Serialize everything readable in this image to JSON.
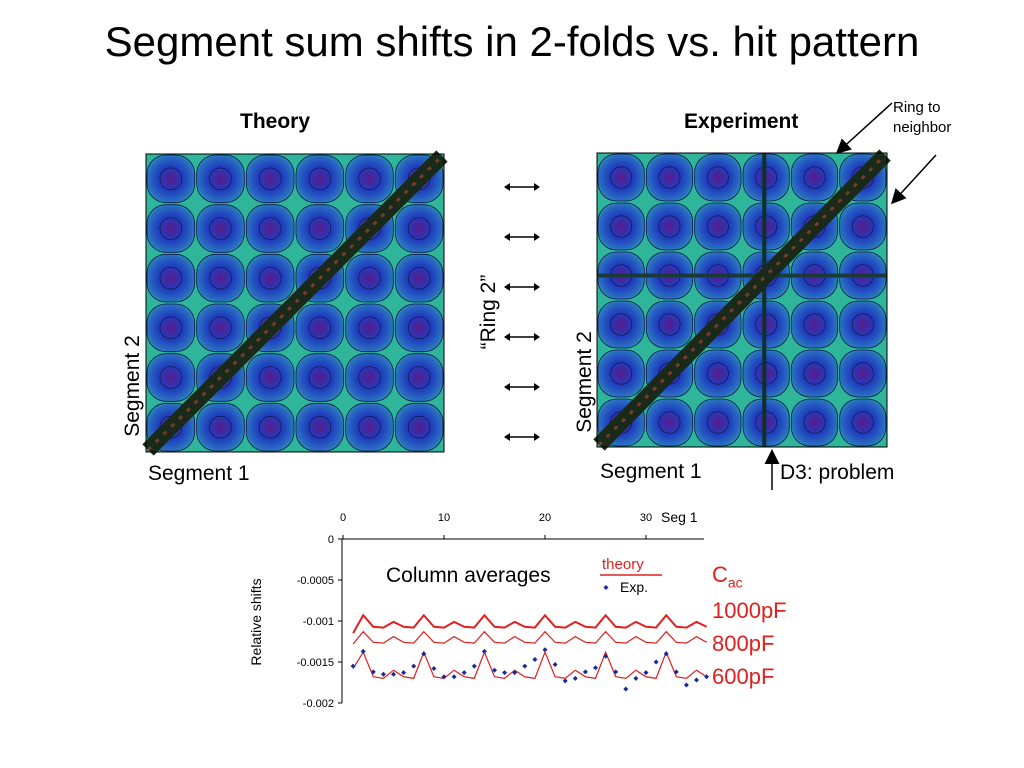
{
  "slide": {
    "title": "Segment sum shifts in 2-folds vs. hit pattern"
  },
  "theory_panel": {
    "header": "Theory",
    "x_label": "Segment 1",
    "y_label": "Segment 2"
  },
  "experiment_panel": {
    "header": "Experiment",
    "x_label": "Segment 1",
    "y_label": "Segment 2",
    "annotation_ring": "Ring to neighbor",
    "annotation_d3": "D3: problem"
  },
  "middle": {
    "ring_label": "“Ring 2”",
    "arrow_count": 6
  },
  "colors": {
    "map_blue": "#1f3fbf",
    "map_green": "#2fb59a",
    "map_purple": "#5a1a8c",
    "diagonal": "#1a2a1a",
    "theory_red": "#e0201e",
    "exp_blue": "#1a2a9a"
  },
  "chart_data": {
    "type": "line",
    "title": "Column averages",
    "xlabel": "Seg 1",
    "ylabel": "Relative shifts",
    "xlim": [
      0,
      36
    ],
    "ylim": [
      -0.002,
      0
    ],
    "x_ticks": [
      "0",
      "10",
      "20",
      "30"
    ],
    "x_tick_values": [
      0,
      10,
      20,
      30
    ],
    "y_ticks": [
      "0",
      "-0.0005",
      "-0.001",
      "-0.0015",
      "-0.002"
    ],
    "y_tick_values": [
      0,
      -0.0005,
      -0.001,
      -0.0015,
      -0.002
    ],
    "legend": {
      "theory": "theory",
      "exp": "Exp.",
      "position": "top-right"
    },
    "cac_label": "C",
    "cac_sub": "ac",
    "series": [
      {
        "name": "1000pF",
        "style": "thick",
        "x": [
          1,
          2,
          3,
          4,
          5,
          6,
          7,
          8,
          9,
          10,
          11,
          12,
          13,
          14,
          15,
          16,
          17,
          18,
          19,
          20,
          21,
          22,
          23,
          24,
          25,
          26,
          27,
          28,
          29,
          30,
          31,
          32,
          33,
          34,
          35,
          36
        ],
        "values": [
          -0.00115,
          -0.00093,
          -0.00107,
          -0.00108,
          -0.00101,
          -0.00107,
          -0.00108,
          -0.00093,
          -0.00107,
          -0.00108,
          -0.00101,
          -0.00107,
          -0.00108,
          -0.00093,
          -0.00107,
          -0.00108,
          -0.00101,
          -0.00107,
          -0.00108,
          -0.00093,
          -0.00107,
          -0.00108,
          -0.00101,
          -0.00107,
          -0.00108,
          -0.00093,
          -0.00107,
          -0.00108,
          -0.00101,
          -0.00107,
          -0.00108,
          -0.00093,
          -0.00107,
          -0.00108,
          -0.00101,
          -0.00107
        ]
      },
      {
        "name": "800pF",
        "style": "thin",
        "x": [
          1,
          2,
          3,
          4,
          5,
          6,
          7,
          8,
          9,
          10,
          11,
          12,
          13,
          14,
          15,
          16,
          17,
          18,
          19,
          20,
          21,
          22,
          23,
          24,
          25,
          26,
          27,
          28,
          29,
          30,
          31,
          32,
          33,
          34,
          35,
          36
        ],
        "values": [
          -0.00128,
          -0.00113,
          -0.00126,
          -0.00127,
          -0.00119,
          -0.00126,
          -0.00127,
          -0.00113,
          -0.00126,
          -0.00127,
          -0.00119,
          -0.00126,
          -0.00127,
          -0.00113,
          -0.00126,
          -0.00127,
          -0.00119,
          -0.00126,
          -0.00127,
          -0.00113,
          -0.00126,
          -0.00127,
          -0.00119,
          -0.00126,
          -0.00127,
          -0.00113,
          -0.00126,
          -0.00127,
          -0.00119,
          -0.00126,
          -0.00127,
          -0.00113,
          -0.00126,
          -0.00127,
          -0.00119,
          -0.00126
        ]
      },
      {
        "name": "600pF",
        "style": "thin",
        "x": [
          1,
          2,
          3,
          4,
          5,
          6,
          7,
          8,
          9,
          10,
          11,
          12,
          13,
          14,
          15,
          16,
          17,
          18,
          19,
          20,
          21,
          22,
          23,
          24,
          25,
          26,
          27,
          28,
          29,
          30,
          31,
          32,
          33,
          34,
          35,
          36
        ],
        "values": [
          -0.00158,
          -0.00138,
          -0.00168,
          -0.0017,
          -0.0016,
          -0.00168,
          -0.0017,
          -0.00138,
          -0.00168,
          -0.0017,
          -0.0016,
          -0.00168,
          -0.0017,
          -0.00138,
          -0.00168,
          -0.0017,
          -0.0016,
          -0.00168,
          -0.0017,
          -0.00138,
          -0.00168,
          -0.0017,
          -0.0016,
          -0.00168,
          -0.0017,
          -0.00138,
          -0.00168,
          -0.0017,
          -0.0016,
          -0.00168,
          -0.0017,
          -0.00138,
          -0.00168,
          -0.0017,
          -0.0016,
          -0.00168
        ]
      },
      {
        "name": "Exp.",
        "style": "points",
        "x": [
          1,
          2,
          3,
          4,
          5,
          6,
          7,
          8,
          9,
          10,
          11,
          12,
          13,
          14,
          15,
          16,
          17,
          18,
          19,
          20,
          21,
          22,
          23,
          24,
          25,
          26,
          27,
          28,
          29,
          30,
          31,
          32,
          33,
          34,
          35,
          36
        ],
        "values": [
          -0.00155,
          -0.00137,
          -0.00162,
          -0.00165,
          -0.00165,
          -0.00163,
          -0.00155,
          -0.0014,
          -0.00158,
          -0.00168,
          -0.00168,
          -0.00163,
          -0.00155,
          -0.00137,
          -0.0016,
          -0.00163,
          -0.00163,
          -0.00155,
          -0.00147,
          -0.00135,
          -0.00153,
          -0.00173,
          -0.0017,
          -0.00162,
          -0.00157,
          -0.00143,
          -0.00162,
          -0.00183,
          -0.0017,
          -0.00163,
          -0.0015,
          -0.0014,
          -0.00162,
          -0.00178,
          -0.00172,
          -0.00168
        ]
      }
    ],
    "series_labels": [
      "1000pF",
      "800pF",
      "600pF"
    ]
  }
}
